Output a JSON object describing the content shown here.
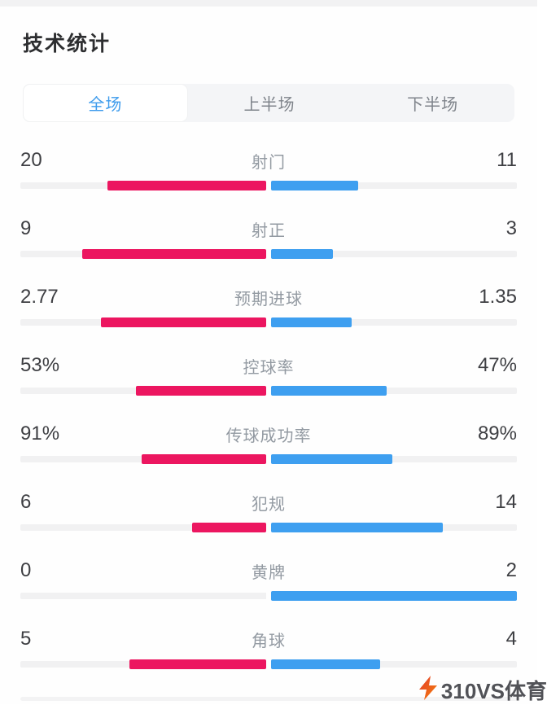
{
  "page": {
    "title": "技术统计"
  },
  "tabs": [
    {
      "label": "全场",
      "active": true
    },
    {
      "label": "上半场",
      "active": false
    },
    {
      "label": "下半场",
      "active": false
    }
  ],
  "colors": {
    "home_bar": "#ec1660",
    "away_bar": "#3e9ff0",
    "bar_track": "#f1f1f2",
    "active_tab_text": "#3d9bec",
    "watermark_logo_red": "#e33a2d",
    "watermark_logo_orange": "#f5820b"
  },
  "chart_data": {
    "type": "bar",
    "orientation": "horizontal-paired",
    "title": "技术统计",
    "series": [
      {
        "name": "home",
        "color": "#ec1660",
        "side": "left"
      },
      {
        "name": "away",
        "color": "#3e9ff0",
        "side": "right"
      }
    ],
    "rows": [
      {
        "label": "射门",
        "left": "20",
        "right": "11",
        "left_pct": 64.5,
        "right_pct": 35.5
      },
      {
        "label": "射正",
        "left": "9",
        "right": "3",
        "left_pct": 75,
        "right_pct": 25
      },
      {
        "label": "预期进球",
        "left": "2.77",
        "right": "1.35",
        "left_pct": 67.2,
        "right_pct": 32.8
      },
      {
        "label": "控球率",
        "left": "53%",
        "right": "47%",
        "left_pct": 53,
        "right_pct": 47
      },
      {
        "label": "传球成功率",
        "left": "91%",
        "right": "89%",
        "left_pct": 50.6,
        "right_pct": 49.4
      },
      {
        "label": "犯规",
        "left": "6",
        "right": "14",
        "left_pct": 30,
        "right_pct": 70
      },
      {
        "label": "黄牌",
        "left": "0",
        "right": "2",
        "left_pct": 0,
        "right_pct": 100
      },
      {
        "label": "角球",
        "left": "5",
        "right": "4",
        "left_pct": 55.6,
        "right_pct": 44.4
      }
    ]
  },
  "watermark": {
    "text": "310VS体育"
  }
}
